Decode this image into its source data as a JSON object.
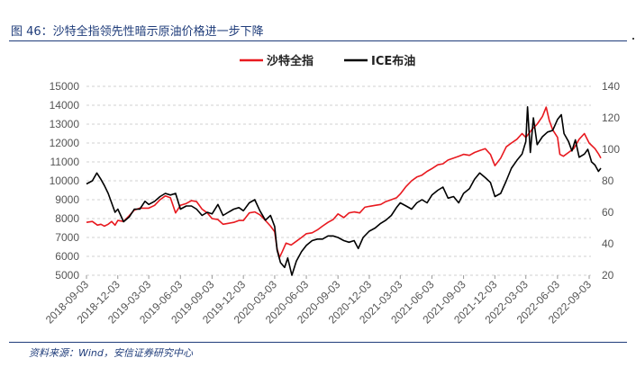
{
  "figure": {
    "title": "图 46：沙特全指领先性暗示原油价格进一步下降",
    "source": "资料来源：Wind，安信证券研究中心"
  },
  "colors": {
    "tasi": "#e8191f",
    "brent": "#000000",
    "grid": "#d0d0d0",
    "title": "#1f3c7a"
  },
  "chart_data": {
    "type": "line",
    "title": "",
    "xlabel": "",
    "ylabel": "",
    "ylim": [
      5000,
      15000
    ],
    "y2lim": [
      20,
      140
    ],
    "grid": true,
    "legend": "top-center",
    "x_ticks": [
      "2018-09-03",
      "2018-12-03",
      "2019-03-03",
      "2019-06-03",
      "2019-09-03",
      "2019-12-03",
      "2020-03-03",
      "2020-06-03",
      "2020-09-03",
      "2020-12-03",
      "2021-03-03",
      "2021-06-03",
      "2021-09-03",
      "2021-12-03",
      "2022-03-03",
      "2022-06-03",
      "2022-09-03"
    ],
    "y_ticks_left": [
      5000,
      6000,
      7000,
      8000,
      9000,
      10000,
      11000,
      12000,
      13000,
      14000,
      15000
    ],
    "y_ticks_right": [
      20,
      40,
      60,
      80,
      100,
      120,
      140
    ],
    "series": [
      {
        "name": "沙特全指",
        "axis": "left",
        "color": "#e8191f",
        "points": [
          [
            "2018-09-03",
            7800
          ],
          [
            "2018-09-20",
            7850
          ],
          [
            "2018-10-05",
            7650
          ],
          [
            "2018-10-15",
            7700
          ],
          [
            "2018-10-25",
            7600
          ],
          [
            "2018-11-05",
            7700
          ],
          [
            "2018-11-15",
            7850
          ],
          [
            "2018-11-25",
            7650
          ],
          [
            "2018-12-03",
            7900
          ],
          [
            "2018-12-20",
            7850
          ],
          [
            "2019-01-05",
            8150
          ],
          [
            "2019-01-20",
            8450
          ],
          [
            "2019-02-05",
            8550
          ],
          [
            "2019-02-20",
            8550
          ],
          [
            "2019-03-03",
            8550
          ],
          [
            "2019-03-20",
            8700
          ],
          [
            "2019-04-05",
            9000
          ],
          [
            "2019-04-20",
            9200
          ],
          [
            "2019-05-05",
            9100
          ],
          [
            "2019-05-20",
            8300
          ],
          [
            "2019-06-03",
            8700
          ],
          [
            "2019-06-20",
            8800
          ],
          [
            "2019-07-05",
            8950
          ],
          [
            "2019-07-20",
            8900
          ],
          [
            "2019-08-05",
            8500
          ],
          [
            "2019-08-20",
            8300
          ],
          [
            "2019-09-03",
            8000
          ],
          [
            "2019-09-20",
            7950
          ],
          [
            "2019-10-05",
            7700
          ],
          [
            "2019-10-20",
            7750
          ],
          [
            "2019-11-05",
            7800
          ],
          [
            "2019-11-20",
            7900
          ],
          [
            "2019-12-03",
            7900
          ],
          [
            "2019-12-20",
            8300
          ],
          [
            "2020-01-05",
            8350
          ],
          [
            "2020-01-20",
            8200
          ],
          [
            "2020-02-05",
            7900
          ],
          [
            "2020-02-20",
            7600
          ],
          [
            "2020-03-03",
            7300
          ],
          [
            "2020-03-10",
            6400
          ],
          [
            "2020-03-17",
            5950
          ],
          [
            "2020-03-25",
            6250
          ],
          [
            "2020-04-05",
            6700
          ],
          [
            "2020-04-20",
            6600
          ],
          [
            "2020-05-05",
            6800
          ],
          [
            "2020-05-20",
            7000
          ],
          [
            "2020-06-03",
            7200
          ],
          [
            "2020-06-20",
            7250
          ],
          [
            "2020-07-05",
            7400
          ],
          [
            "2020-07-20",
            7600
          ],
          [
            "2020-08-05",
            7800
          ],
          [
            "2020-08-20",
            7950
          ],
          [
            "2020-09-03",
            8250
          ],
          [
            "2020-09-20",
            8050
          ],
          [
            "2020-10-05",
            8300
          ],
          [
            "2020-10-20",
            8350
          ],
          [
            "2020-11-05",
            8300
          ],
          [
            "2020-11-20",
            8600
          ],
          [
            "2020-12-03",
            8650
          ],
          [
            "2020-12-20",
            8700
          ],
          [
            "2021-01-05",
            8750
          ],
          [
            "2021-01-20",
            8900
          ],
          [
            "2021-02-05",
            9000
          ],
          [
            "2021-02-20",
            9100
          ],
          [
            "2021-03-03",
            9300
          ],
          [
            "2021-03-20",
            9700
          ],
          [
            "2021-04-05",
            10000
          ],
          [
            "2021-04-20",
            10200
          ],
          [
            "2021-05-05",
            10300
          ],
          [
            "2021-05-20",
            10500
          ],
          [
            "2021-06-03",
            10650
          ],
          [
            "2021-06-20",
            10850
          ],
          [
            "2021-07-05",
            10900
          ],
          [
            "2021-07-20",
            11100
          ],
          [
            "2021-08-05",
            11200
          ],
          [
            "2021-08-20",
            11300
          ],
          [
            "2021-09-03",
            11400
          ],
          [
            "2021-09-20",
            11350
          ],
          [
            "2021-10-05",
            11500
          ],
          [
            "2021-10-20",
            11600
          ],
          [
            "2021-11-05",
            11700
          ],
          [
            "2021-11-20",
            11400
          ],
          [
            "2021-12-03",
            10800
          ],
          [
            "2021-12-20",
            11200
          ],
          [
            "2022-01-05",
            11800
          ],
          [
            "2022-01-20",
            12000
          ],
          [
            "2022-02-05",
            12200
          ],
          [
            "2022-02-20",
            12500
          ],
          [
            "2022-03-03",
            12300
          ],
          [
            "2022-03-20",
            12700
          ],
          [
            "2022-04-05",
            13000
          ],
          [
            "2022-04-20",
            13400
          ],
          [
            "2022-05-01",
            13900
          ],
          [
            "2022-05-10",
            13200
          ],
          [
            "2022-05-20",
            12700
          ],
          [
            "2022-06-03",
            12300
          ],
          [
            "2022-06-10",
            11400
          ],
          [
            "2022-06-20",
            11300
          ],
          [
            "2022-07-05",
            11500
          ],
          [
            "2022-07-20",
            11700
          ],
          [
            "2022-08-05",
            12200
          ],
          [
            "2022-08-20",
            12500
          ],
          [
            "2022-09-03",
            12000
          ],
          [
            "2022-09-20",
            11700
          ],
          [
            "2022-10-01",
            11400
          ],
          [
            "2022-10-07",
            11200
          ]
        ]
      },
      {
        "name": "ICE布油",
        "axis": "right",
        "color": "#000000",
        "points": [
          [
            "2018-09-03",
            78
          ],
          [
            "2018-09-20",
            80
          ],
          [
            "2018-10-03",
            85
          ],
          [
            "2018-10-15",
            81
          ],
          [
            "2018-10-25",
            77
          ],
          [
            "2018-11-05",
            72
          ],
          [
            "2018-11-15",
            66
          ],
          [
            "2018-11-25",
            60
          ],
          [
            "2018-12-03",
            62
          ],
          [
            "2018-12-20",
            54
          ],
          [
            "2019-01-05",
            57
          ],
          [
            "2019-01-20",
            62
          ],
          [
            "2019-02-05",
            62
          ],
          [
            "2019-02-20",
            67
          ],
          [
            "2019-03-03",
            65
          ],
          [
            "2019-03-20",
            67
          ],
          [
            "2019-04-05",
            70
          ],
          [
            "2019-04-20",
            72
          ],
          [
            "2019-05-05",
            71
          ],
          [
            "2019-05-20",
            72
          ],
          [
            "2019-06-03",
            62
          ],
          [
            "2019-06-20",
            64
          ],
          [
            "2019-07-05",
            64
          ],
          [
            "2019-07-20",
            62
          ],
          [
            "2019-08-05",
            58
          ],
          [
            "2019-08-20",
            60
          ],
          [
            "2019-09-03",
            59
          ],
          [
            "2019-09-20",
            65
          ],
          [
            "2019-10-05",
            58
          ],
          [
            "2019-10-20",
            60
          ],
          [
            "2019-11-05",
            62
          ],
          [
            "2019-11-20",
            63
          ],
          [
            "2019-12-03",
            61
          ],
          [
            "2019-12-20",
            66
          ],
          [
            "2020-01-05",
            68
          ],
          [
            "2020-01-20",
            61
          ],
          [
            "2020-02-05",
            55
          ],
          [
            "2020-02-20",
            58
          ],
          [
            "2020-03-03",
            51
          ],
          [
            "2020-03-10",
            36
          ],
          [
            "2020-03-20",
            28
          ],
          [
            "2020-04-01",
            25
          ],
          [
            "2020-04-10",
            31
          ],
          [
            "2020-04-22",
            20
          ],
          [
            "2020-05-05",
            29
          ],
          [
            "2020-05-20",
            35
          ],
          [
            "2020-06-03",
            39
          ],
          [
            "2020-06-20",
            42
          ],
          [
            "2020-07-05",
            43
          ],
          [
            "2020-07-20",
            43
          ],
          [
            "2020-08-05",
            45
          ],
          [
            "2020-08-20",
            45
          ],
          [
            "2020-09-03",
            44
          ],
          [
            "2020-09-20",
            42
          ],
          [
            "2020-10-05",
            41
          ],
          [
            "2020-10-20",
            42
          ],
          [
            "2020-11-01",
            37
          ],
          [
            "2020-11-15",
            44
          ],
          [
            "2020-12-03",
            48
          ],
          [
            "2020-12-20",
            50
          ],
          [
            "2021-01-05",
            53
          ],
          [
            "2021-01-20",
            55
          ],
          [
            "2021-02-05",
            58
          ],
          [
            "2021-02-20",
            63
          ],
          [
            "2021-03-03",
            66
          ],
          [
            "2021-03-20",
            64
          ],
          [
            "2021-04-05",
            62
          ],
          [
            "2021-04-20",
            66
          ],
          [
            "2021-05-05",
            68
          ],
          [
            "2021-05-20",
            66
          ],
          [
            "2021-06-03",
            71
          ],
          [
            "2021-06-20",
            74
          ],
          [
            "2021-07-05",
            76
          ],
          [
            "2021-07-20",
            69
          ],
          [
            "2021-08-05",
            70
          ],
          [
            "2021-08-20",
            66
          ],
          [
            "2021-09-03",
            72
          ],
          [
            "2021-09-20",
            75
          ],
          [
            "2021-10-05",
            81
          ],
          [
            "2021-10-20",
            85
          ],
          [
            "2021-11-05",
            82
          ],
          [
            "2021-11-20",
            79
          ],
          [
            "2021-12-03",
            70
          ],
          [
            "2021-12-20",
            72
          ],
          [
            "2022-01-05",
            80
          ],
          [
            "2022-01-20",
            88
          ],
          [
            "2022-02-05",
            93
          ],
          [
            "2022-02-20",
            97
          ],
          [
            "2022-03-03",
            105
          ],
          [
            "2022-03-08",
            127
          ],
          [
            "2022-03-16",
            98
          ],
          [
            "2022-03-25",
            120
          ],
          [
            "2022-04-05",
            103
          ],
          [
            "2022-04-20",
            108
          ],
          [
            "2022-05-05",
            111
          ],
          [
            "2022-05-20",
            112
          ],
          [
            "2022-06-03",
            119
          ],
          [
            "2022-06-14",
            122
          ],
          [
            "2022-06-22",
            110
          ],
          [
            "2022-07-05",
            105
          ],
          [
            "2022-07-15",
            99
          ],
          [
            "2022-07-25",
            106
          ],
          [
            "2022-08-05",
            95
          ],
          [
            "2022-08-20",
            97
          ],
          [
            "2022-08-30",
            100
          ],
          [
            "2022-09-10",
            92
          ],
          [
            "2022-09-20",
            90
          ],
          [
            "2022-09-30",
            86
          ],
          [
            "2022-10-07",
            88
          ]
        ]
      }
    ]
  }
}
